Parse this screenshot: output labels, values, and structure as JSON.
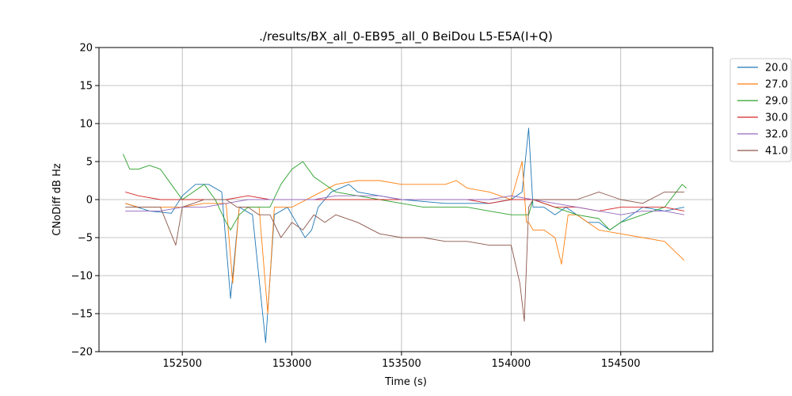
{
  "chart_data": {
    "type": "line",
    "title": "./results/BX_all_0-EB95_all_0 BeiDou L5-E5A(I+Q)",
    "xlabel": "Time (s)",
    "ylabel": "CNoDiff dB Hz",
    "xlim": [
      152120,
      154920
    ],
    "ylim": [
      -20,
      20
    ],
    "x_ticks": [
      152500,
      153000,
      153500,
      154000,
      154500
    ],
    "x_tick_labels": [
      "152500",
      "153000",
      "153500",
      "154000",
      "154500"
    ],
    "y_ticks": [
      -20,
      -15,
      -10,
      -5,
      0,
      5,
      10,
      15,
      20
    ],
    "y_tick_labels": [
      "−20",
      "−15",
      "−10",
      "−5",
      "0",
      "5",
      "10",
      "15",
      "20"
    ],
    "grid": true,
    "legend_position": "outside-right",
    "series": [
      {
        "name": "20.0",
        "color": "#1f77b4",
        "x": [
          152240,
          152350,
          152450,
          152500,
          152560,
          152620,
          152680,
          152720,
          152760,
          152820,
          152880,
          152920,
          152980,
          153020,
          153060,
          153090,
          153120,
          153180,
          153260,
          153300,
          153400,
          153500,
          153700,
          153900,
          154000,
          154050,
          154080,
          154100,
          154150,
          154200,
          154250,
          154300,
          154350,
          154400,
          154450,
          154500,
          154550,
          154600,
          154700,
          154790
        ],
        "y": [
          -0.5,
          -1.5,
          -1.8,
          0.5,
          2.0,
          2.0,
          1.0,
          -13,
          -1,
          -2,
          -18.8,
          -2,
          -1,
          -3,
          -5,
          -4,
          -1,
          1,
          2,
          1,
          0.5,
          0,
          -0.5,
          -0.5,
          0,
          1,
          9.4,
          -1,
          -1,
          -2,
          -1,
          -2,
          -3,
          -3,
          -4,
          -3,
          -2,
          -1,
          -1.5,
          -1.0
        ]
      },
      {
        "name": "27.0",
        "color": "#ff7f0e",
        "x": [
          152240,
          152300,
          152400,
          152500,
          152600,
          152700,
          152730,
          152760,
          152850,
          152890,
          152920,
          153000,
          153100,
          153200,
          153300,
          153400,
          153500,
          153600,
          153700,
          153750,
          153800,
          153900,
          154000,
          154050,
          154070,
          154080,
          154100,
          154150,
          154200,
          154230,
          154260,
          154300,
          154400,
          154500,
          154600,
          154700,
          154790
        ],
        "y": [
          -0.5,
          -1,
          -1,
          -1,
          -0.5,
          -0.5,
          -11,
          -1,
          -1,
          -15,
          -1,
          -1,
          0.5,
          2,
          2.5,
          2.5,
          2,
          2,
          2,
          2.5,
          1.5,
          1,
          0,
          5,
          -3,
          -3,
          -4,
          -4,
          -5,
          -8.5,
          -2,
          -2,
          -4,
          -4.5,
          -5,
          -5.5,
          -8.0
        ]
      },
      {
        "name": "29.0",
        "color": "#2ca02c",
        "x": [
          152230,
          152260,
          152300,
          152350,
          152400,
          152450,
          152500,
          152550,
          152600,
          152650,
          152700,
          152720,
          152760,
          152800,
          152850,
          152900,
          152950,
          153000,
          153050,
          153100,
          153200,
          153300,
          153400,
          153500,
          153600,
          153700,
          153800,
          153900,
          154000,
          154080,
          154100,
          154200,
          154300,
          154400,
          154450,
          154500,
          154600,
          154700,
          154780,
          154800
        ],
        "y": [
          6,
          4,
          4,
          4.5,
          4,
          2,
          0,
          1,
          2,
          0,
          -3,
          -4,
          -2,
          -1,
          -1,
          -1,
          2,
          4,
          5,
          3,
          1,
          0.5,
          0,
          -0.5,
          -1,
          -1,
          -1,
          -1.5,
          -2,
          -2,
          0,
          -1,
          -2,
          -2.5,
          -4,
          -3,
          -2,
          -1,
          2,
          1.5
        ]
      },
      {
        "name": "30.0",
        "color": "#d62728",
        "x": [
          152240,
          152300,
          152400,
          152500,
          152600,
          152700,
          152800,
          152900,
          153000,
          153100,
          153200,
          153300,
          153400,
          153500,
          153600,
          153700,
          153800,
          153900,
          154000,
          154100,
          154200,
          154300,
          154400,
          154500,
          154600,
          154700,
          154790
        ],
        "y": [
          1.0,
          0.5,
          0,
          0,
          0,
          0,
          0.5,
          0,
          0,
          0,
          0,
          0,
          0,
          0,
          0,
          0,
          0,
          -0.5,
          0,
          0,
          -1,
          -1,
          -1.5,
          -1,
          -1,
          -1,
          -1.5
        ]
      },
      {
        "name": "32.0",
        "color": "#9467bd",
        "x": [
          152240,
          152300,
          152400,
          152500,
          152600,
          152700,
          152800,
          152900,
          153000,
          153100,
          153200,
          153300,
          153400,
          153500,
          153600,
          153700,
          153800,
          153900,
          154000,
          154100,
          154200,
          154300,
          154400,
          154500,
          154600,
          154700,
          154790
        ],
        "y": [
          -1.5,
          -1.5,
          -1.5,
          -1,
          -1,
          -0.5,
          0,
          0,
          0,
          0,
          0.5,
          0.5,
          0.5,
          0,
          0,
          0,
          0,
          0,
          0.5,
          0,
          -0.5,
          -1,
          -1.5,
          -2,
          -1.5,
          -1.5,
          -2
        ]
      },
      {
        "name": "41.0",
        "color": "#8c564b",
        "x": [
          152240,
          152300,
          152400,
          152470,
          152500,
          152600,
          152700,
          152750,
          152800,
          152850,
          152900,
          152950,
          153000,
          153050,
          153100,
          153150,
          153200,
          153300,
          153400,
          153500,
          153600,
          153700,
          153800,
          153900,
          154000,
          154040,
          154060,
          154080,
          154100,
          154200,
          154300,
          154400,
          154500,
          154600,
          154700,
          154790
        ],
        "y": [
          -1,
          -1,
          -1,
          -6,
          -1,
          0,
          0,
          -1,
          -1,
          -2,
          -2,
          -5,
          -3,
          -4,
          -2,
          -3,
          -2,
          -3,
          -4.5,
          -5,
          -5,
          -5.5,
          -5.5,
          -6,
          -6,
          -11,
          -16,
          -1,
          0,
          0,
          0,
          1,
          0,
          -0.5,
          1,
          1.0
        ]
      }
    ]
  }
}
